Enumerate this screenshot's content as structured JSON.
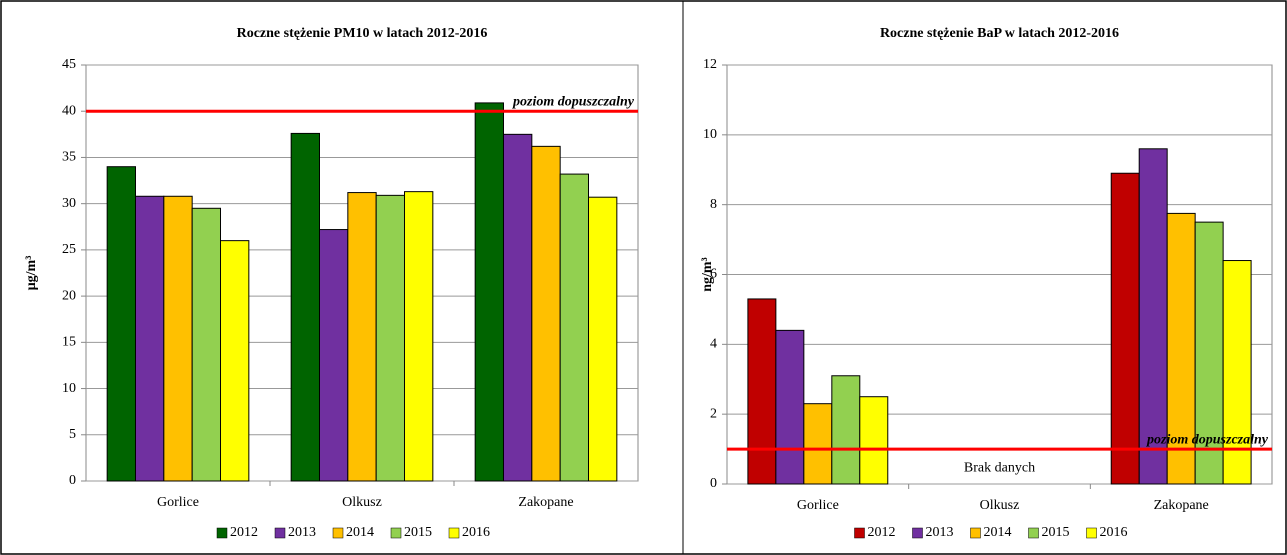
{
  "chart_data": [
    {
      "type": "bar",
      "title": "Roczne stężenie PM10 w latach 2012-2016",
      "y_label": "µg/m³",
      "categories": [
        "Gorlice",
        "Olkusz",
        "Zakopane"
      ],
      "series": [
        {
          "name": "2012",
          "color": "#006400",
          "values": [
            34,
            37.6,
            40.9
          ]
        },
        {
          "name": "2013",
          "color": "#7030a0",
          "values": [
            30.8,
            27.2,
            37.5
          ]
        },
        {
          "name": "2014",
          "color": "#ffc000",
          "values": [
            30.8,
            31.2,
            36.2
          ]
        },
        {
          "name": "2015",
          "color": "#92d050",
          "values": [
            29.5,
            30.9,
            33.2
          ]
        },
        {
          "name": "2016",
          "color": "#ffff00",
          "values": [
            26,
            31.3,
            30.7
          ]
        }
      ],
      "ylim": [
        0,
        45
      ],
      "yticks": [
        0,
        5,
        10,
        15,
        20,
        25,
        30,
        35,
        40,
        45
      ],
      "grid": true,
      "limit_line": 40,
      "limit_label": "poziom dopuszczalny",
      "limit_color": "#ff0000",
      "legend": "bottom"
    },
    {
      "type": "bar",
      "title": "Roczne stężenie BaP w latach 2012-2016",
      "y_label": "ng/m³",
      "categories": [
        "Gorlice",
        "Olkusz",
        "Zakopane"
      ],
      "series": [
        {
          "name": "2012",
          "color": "#c00000",
          "values": [
            5.3,
            null,
            8.9
          ]
        },
        {
          "name": "2013",
          "color": "#7030a0",
          "values": [
            4.4,
            null,
            9.6
          ]
        },
        {
          "name": "2014",
          "color": "#ffc000",
          "values": [
            2.3,
            null,
            7.75
          ]
        },
        {
          "name": "2015",
          "color": "#92d050",
          "values": [
            3.1,
            null,
            7.5
          ]
        },
        {
          "name": "2016",
          "color": "#ffff00",
          "values": [
            2.5,
            null,
            6.4
          ]
        }
      ],
      "ylim": [
        0,
        12
      ],
      "yticks": [
        0,
        2,
        4,
        6,
        8,
        10,
        12
      ],
      "grid": true,
      "limit_line": 1,
      "limit_label": "poziom dopuszczalny",
      "limit_color": "#ff0000",
      "annotation": "Brak danych",
      "legend": "bottom"
    }
  ]
}
